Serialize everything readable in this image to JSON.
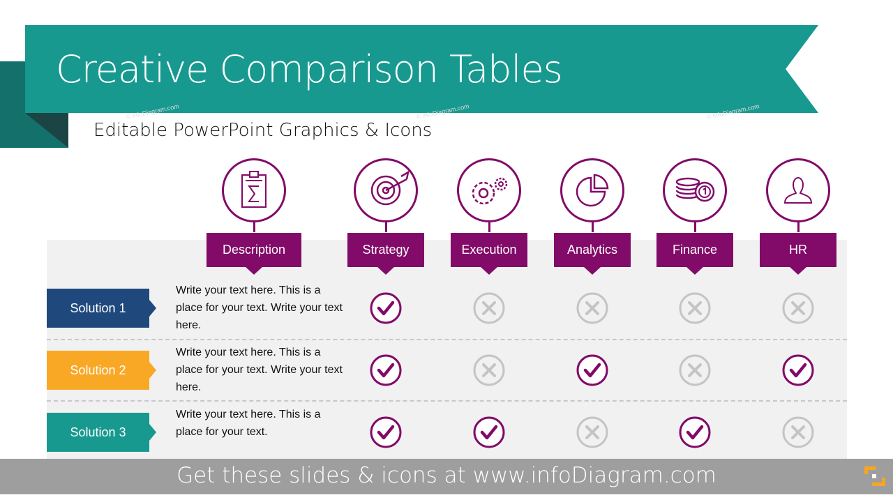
{
  "title": "Creative Comparison Tables",
  "subtitle": "Editable PowerPoint Graphics & Icons",
  "colors": {
    "banner": "#17998f",
    "fold": "#13706a",
    "fold_dark": "#1b4444",
    "accent": "#820a68",
    "cross": "#c4c4c4"
  },
  "columns": [
    {
      "label": "Description",
      "icon": "clipboard-sigma-icon"
    },
    {
      "label": "Strategy",
      "icon": "target-arrow-icon"
    },
    {
      "label": "Execution",
      "icon": "gears-icon"
    },
    {
      "label": "Analytics",
      "icon": "pie-chart-icon"
    },
    {
      "label": "Finance",
      "icon": "coins-icon"
    },
    {
      "label": "HR",
      "icon": "person-icon"
    }
  ],
  "rows": [
    {
      "label": "Solution 1",
      "color": "#1f497d",
      "text": "Write your text here. This is a place for your text. Write your text here.",
      "marks": [
        "check",
        "cross",
        "cross",
        "cross",
        "cross"
      ]
    },
    {
      "label": "Solution 2",
      "color": "#f9a825",
      "text": "Write your text here. This is a place for your text. Write your text here.",
      "marks": [
        "check",
        "cross",
        "check",
        "cross",
        "check"
      ]
    },
    {
      "label": "Solution 3",
      "color": "#17998f",
      "text": "Write your text here. This is a place for your text.",
      "marks": [
        "check",
        "check",
        "cross",
        "check",
        "cross"
      ]
    }
  ],
  "watermark": "© infoDiagram.com",
  "footer": "Get these slides & icons at www.infoDiagram.com"
}
